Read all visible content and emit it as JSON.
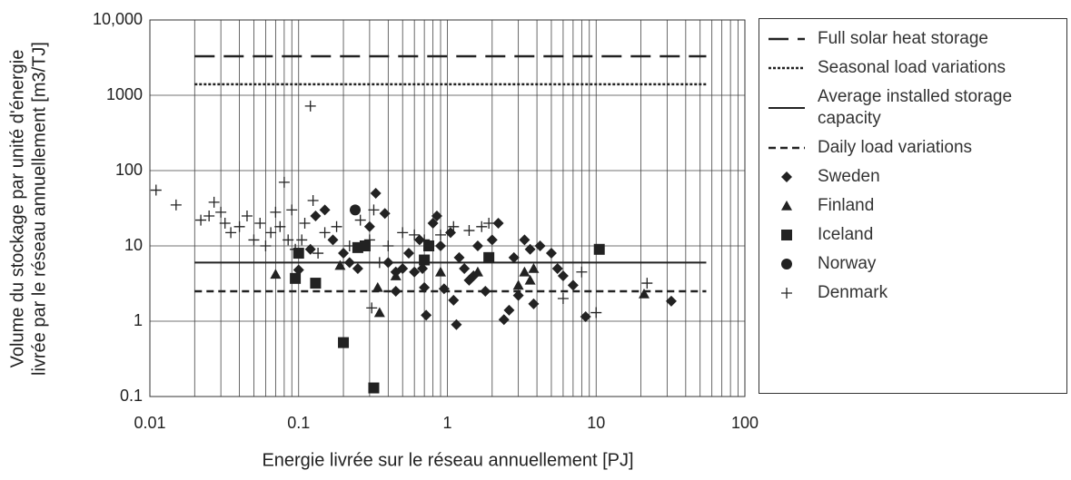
{
  "chart_data": {
    "type": "scatter",
    "xlabel": "Energie livrée sur le réseau annuellement [PJ]",
    "ylabel": [
      "Volume du stockage par unité d'énergie",
      "livrée par le réseau annuellement [m3/TJ]"
    ],
    "xlog": true,
    "ylog": true,
    "grid": true,
    "xlim": [
      0.01,
      100
    ],
    "ylim": [
      0.1,
      10000
    ],
    "xticks": [
      0.01,
      0.1,
      1,
      10,
      100
    ],
    "x_minor_ticks": [
      0.02,
      0.03,
      0.04,
      0.05,
      0.06,
      0.07,
      0.08,
      0.09,
      0.2,
      0.3,
      0.4,
      0.5,
      0.6,
      0.7,
      0.8,
      0.9,
      2,
      3,
      4,
      5,
      6,
      7,
      8,
      9,
      20,
      30,
      40,
      50,
      60,
      70,
      80,
      90
    ],
    "yticks": [
      0.1,
      1,
      10,
      100,
      1000,
      {
        "value": 10000,
        "label": "10,000"
      }
    ],
    "legend": "right",
    "reference_lines": [
      {
        "name": "Full solar heat storage",
        "value": 3300,
        "x": [
          0.02,
          55
        ],
        "dash": "long",
        "color": "#222"
      },
      {
        "name": "Seasonal load variations",
        "value": 1400,
        "x": [
          0.02,
          55
        ],
        "dash": "dotted",
        "color": "#222"
      },
      {
        "name": "Average installed storage capacity",
        "value": 6,
        "x": [
          0.02,
          55
        ],
        "dash": "solid",
        "color": "#222"
      },
      {
        "name": "Daily load variations",
        "value": 2.5,
        "x": [
          0.02,
          55
        ],
        "dash": "short",
        "color": "#222"
      }
    ],
    "series": [
      {
        "name": "Sweden",
        "marker": "diamond",
        "color": "#222",
        "x": [
          0.13,
          0.15,
          0.17,
          0.2,
          0.22,
          0.25,
          0.3,
          0.33,
          0.38,
          0.4,
          0.45,
          0.5,
          0.55,
          0.6,
          0.65,
          0.7,
          0.72,
          0.8,
          0.85,
          0.9,
          0.95,
          1.05,
          1.1,
          1.15,
          1.2,
          1.3,
          1.4,
          1.5,
          1.6,
          1.8,
          2.0,
          2.2,
          2.4,
          2.6,
          2.8,
          3.0,
          3.3,
          3.6,
          3.8,
          4.2,
          5,
          5.5,
          6,
          7,
          8.5,
          32,
          0.1,
          0.12,
          0.45,
          0.68
        ],
        "values": [
          25,
          30,
          12,
          8,
          6,
          5,
          18,
          50,
          27,
          6,
          4.5,
          5,
          8,
          4.5,
          12,
          2.8,
          1.2,
          20,
          25,
          10,
          2.7,
          15,
          1.9,
          0.9,
          7,
          5,
          3.5,
          4,
          10,
          2.5,
          12,
          20,
          1.05,
          1.4,
          7,
          2.2,
          12,
          9,
          1.7,
          10,
          8,
          5,
          4,
          3,
          1.15,
          1.85,
          4.8,
          9,
          2.5,
          5
        ]
      },
      {
        "name": "Finland",
        "marker": "triangle",
        "color": "#222",
        "x": [
          0.07,
          0.19,
          0.34,
          0.35,
          0.45,
          0.9,
          1.6,
          3,
          3.3,
          3.6,
          3.8,
          21
        ],
        "values": [
          4.2,
          5.5,
          2.8,
          1.3,
          4,
          4.5,
          4.5,
          3,
          4.5,
          3.5,
          5,
          2.3
        ]
      },
      {
        "name": "Iceland",
        "marker": "square",
        "color": "#222",
        "x": [
          0.095,
          0.1,
          0.13,
          0.2,
          0.25,
          0.28,
          0.32,
          0.7,
          0.75,
          1.9,
          10.5
        ],
        "values": [
          3.7,
          8,
          3.2,
          0.52,
          9.5,
          10,
          0.13,
          6.5,
          10,
          7,
          9
        ]
      },
      {
        "name": "Norway",
        "marker": "circle",
        "color": "#222",
        "x": [
          0.24
        ],
        "values": [
          30
        ]
      },
      {
        "name": "Denmark",
        "marker": "plus",
        "color": "#222",
        "x": [
          0.011,
          0.015,
          0.022,
          0.025,
          0.027,
          0.03,
          0.032,
          0.035,
          0.04,
          0.045,
          0.05,
          0.055,
          0.06,
          0.065,
          0.07,
          0.075,
          0.08,
          0.085,
          0.09,
          0.095,
          0.105,
          0.11,
          0.12,
          0.125,
          0.135,
          0.15,
          0.18,
          0.22,
          0.26,
          0.3,
          0.32,
          0.35,
          0.4,
          0.6,
          0.9,
          1.1,
          1.4,
          1.7,
          1.9,
          6,
          8,
          10,
          22,
          0.31,
          0.5,
          0.7
        ],
        "values": [
          55,
          35,
          22,
          25,
          38,
          28,
          20,
          15,
          18,
          25,
          12,
          20,
          10,
          15,
          28,
          18,
          70,
          12,
          30,
          9,
          12,
          20,
          720,
          40,
          8,
          15,
          18,
          10,
          22,
          12,
          30,
          6,
          10,
          14,
          14,
          18,
          16,
          18,
          20,
          2,
          4.5,
          1.3,
          3.2,
          1.5,
          15,
          12
        ]
      }
    ]
  }
}
